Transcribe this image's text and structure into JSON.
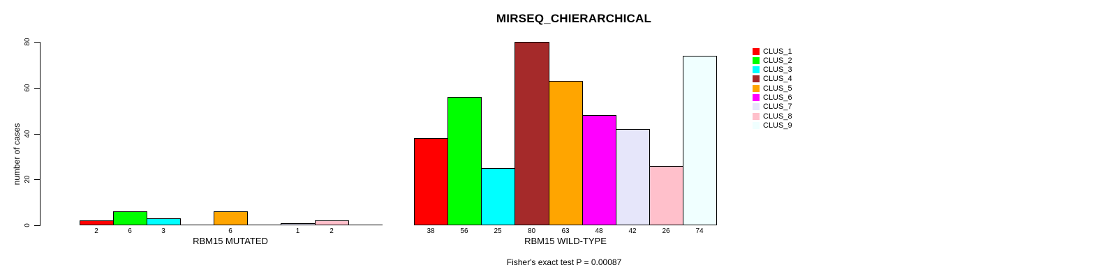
{
  "figure": {
    "background": "#ffffff",
    "text_color": "#000000"
  },
  "chart_data": {
    "type": "bar",
    "title": "MIRSEQ_CHIERARCHICAL",
    "subtitle": "Fisher's exact test P = 0.00087",
    "ylabel": "number of cases",
    "ylim": [
      0,
      80
    ],
    "yticks": [
      0,
      20,
      40,
      60,
      80
    ],
    "ytick_labels": [
      "0",
      "20",
      "40",
      "60",
      "80"
    ],
    "grid": false,
    "legend_position": "right-inside",
    "categories": [
      "CLUS_1",
      "CLUS_2",
      "CLUS_3",
      "CLUS_4",
      "CLUS_5",
      "CLUS_6",
      "CLUS_7",
      "CLUS_8",
      "CLUS_9"
    ],
    "colors": [
      "#FF0000",
      "#00FF00",
      "#00FFFF",
      "#A52A2A",
      "#FFA500",
      "#FF00FF",
      "#E6E6FA",
      "#FFC0CB",
      "#F0FFFF"
    ],
    "bar_border_color": "#000000",
    "groups": [
      {
        "xlabel": "RBM15 MUTATED",
        "values": [
          2,
          6,
          3,
          0,
          6,
          0,
          1,
          2,
          0
        ],
        "bar_labels": [
          "2",
          "6",
          "3",
          "",
          "6",
          "",
          "1",
          "2",
          ""
        ]
      },
      {
        "xlabel": "RBM15 WILD-TYPE",
        "values": [
          38,
          56,
          25,
          80,
          63,
          48,
          42,
          26,
          74
        ],
        "bar_labels": [
          "38",
          "56",
          "25",
          "80",
          "63",
          "48",
          "42",
          "26",
          "74"
        ]
      }
    ],
    "legend": [
      {
        "label": "CLUS_1",
        "color": "#FF0000"
      },
      {
        "label": "CLUS_2",
        "color": "#00FF00"
      },
      {
        "label": "CLUS_3",
        "color": "#00FFFF"
      },
      {
        "label": "CLUS_4",
        "color": "#A52A2A"
      },
      {
        "label": "CLUS_5",
        "color": "#FFA500"
      },
      {
        "label": "CLUS_6",
        "color": "#FF00FF"
      },
      {
        "label": "CLUS_7",
        "color": "#E6E6FA"
      },
      {
        "label": "CLUS_8",
        "color": "#FFC0CB"
      },
      {
        "label": "CLUS_9",
        "color": "#F0FFFF"
      }
    ]
  }
}
